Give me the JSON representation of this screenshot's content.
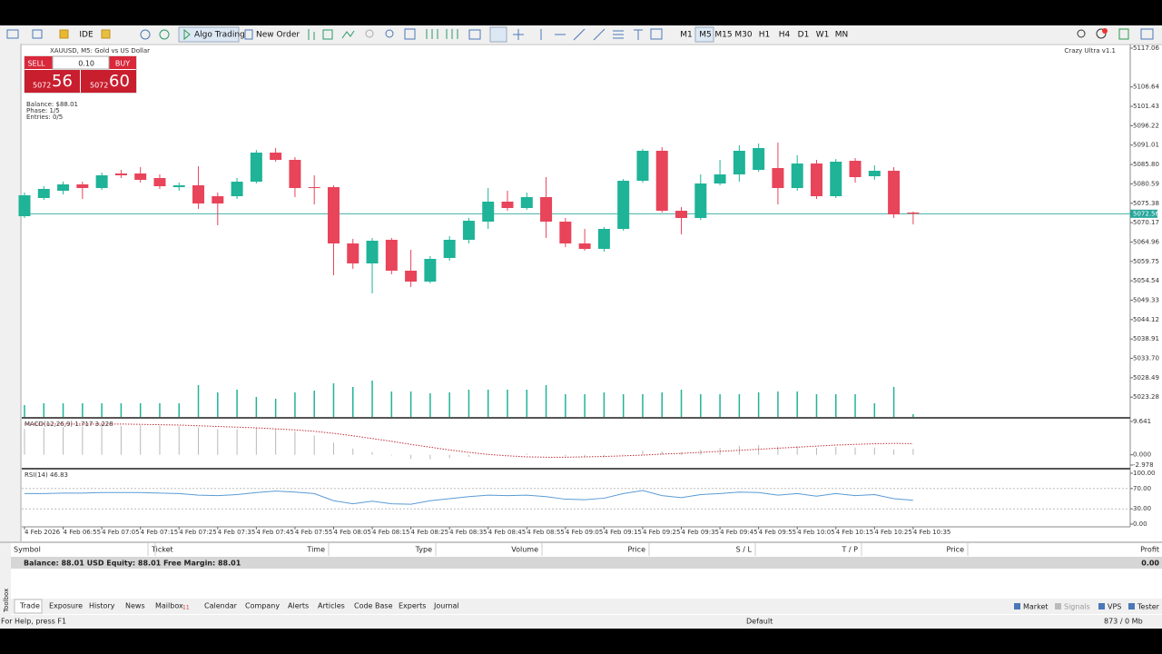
{
  "toolbar": {
    "ide": "IDE",
    "algo": "Algo Trading",
    "new_order": "New Order",
    "timeframes": [
      "M1",
      "M5",
      "M15",
      "M30",
      "H1",
      "H4",
      "D1",
      "W1",
      "MN"
    ]
  },
  "trade_panel": {
    "sell": "SELL",
    "buy": "BUY",
    "lot": "0.10",
    "bid_main": "5072",
    "bid_big": "56",
    "ask_main": "5072",
    "ask_big": "60"
  },
  "info": {
    "lines": [
      "Balance: $88.01",
      "Phase: 1/5",
      "Entries: 0/5"
    ]
  },
  "chart_data": {
    "type": "candlestick",
    "title": "XAUUSD, M5:  Gold vs US Dollar",
    "indicator": "Crazy Ultra v1.1",
    "bull_color": "#1fb398",
    "bear_color": "#e8445a",
    "categories": [
      "4 Feb 2026",
      null,
      "4 Feb 06:55",
      null,
      "4 Feb 07:05",
      null,
      "4 Feb 07:15",
      null,
      "4 Feb 07:25",
      null,
      "4 Feb 07:35",
      null,
      "4 Feb 07:45",
      null,
      "4 Feb 07:55",
      null,
      "4 Feb 08:05",
      null,
      "4 Feb 08:15",
      null,
      "4 Feb 08:25",
      null,
      "4 Feb 08:35",
      null,
      "4 Feb 08:45",
      null,
      "4 Feb 08:55",
      null,
      "4 Feb 09:05",
      null,
      "4 Feb 09:15",
      null,
      "4 Feb 09:25",
      null,
      "4 Feb 09:35",
      null,
      "4 Feb 09:45",
      null,
      "4 Feb 09:55",
      null,
      "4 Feb 10:05",
      null,
      "4 Feb 10:15",
      null,
      "4 Feb 10:25",
      null,
      "4 Feb 10:35"
    ],
    "open": [
      5071.9,
      5076.79,
      5078.74,
      5080.45,
      5079.47,
      5083.38,
      5083.38,
      5082.16,
      5079.71,
      5080.2,
      5077.27,
      5077.27,
      5081.18,
      5088.99,
      5087.04,
      5079.71,
      5079.71,
      5064.58,
      5059.21,
      5065.56,
      5057.26,
      5054.33,
      5060.68,
      5065.56,
      5070.44,
      5075.81,
      5074.1,
      5077.03,
      5070.44,
      5064.58,
      5063.12,
      5068.49,
      5081.42,
      5089.48,
      5073.37,
      5071.42,
      5080.69,
      5083.13,
      5084.35,
      5084.84,
      5079.47,
      5086.06,
      5077.27,
      5086.79,
      5082.64,
      5084.11,
      5072.88
    ],
    "high": [
      5078.25,
      5079.96,
      5081.18,
      5081.18,
      5083.62,
      5084.35,
      5085.08,
      5083.13,
      5080.94,
      5085.33,
      5078.25,
      5082.16,
      5089.72,
      5090.21,
      5087.77,
      5082.89,
      5080.2,
      5065.8,
      5066.04,
      5066.04,
      5062.87,
      5061.16,
      5066.53,
      5071.42,
      5079.47,
      5078.74,
      5078.25,
      5082.4,
      5071.42,
      5068.49,
      5068.97,
      5081.91,
      5089.97,
      5090.45,
      5074.35,
      5083.13,
      5087.04,
      5090.94,
      5091.43,
      5091.68,
      5088.25,
      5087.04,
      5087.28,
      5087.53,
      5085.57,
      5085.08,
      5073.13
    ],
    "low": [
      5071.42,
      5076.3,
      5077.76,
      5076.54,
      5078.98,
      5082.16,
      5080.94,
      5079.23,
      5078.74,
      5073.86,
      5069.46,
      5076.54,
      5080.69,
      5086.55,
      5077.03,
      5075.08,
      5056.04,
      5057.75,
      5051.16,
      5056.28,
      5052.87,
      5053.84,
      5059.94,
      5064.58,
      5068.49,
      5073.37,
      5073.61,
      5066.04,
      5063.6,
      5062.63,
      5062.39,
      5068.0,
      5080.94,
      5072.88,
      5067.02,
      5070.93,
      5080.2,
      5081.18,
      5083.86,
      5075.08,
      5078.74,
      5076.54,
      5076.79,
      5080.94,
      5081.67,
      5071.42,
      5069.7
    ],
    "close": [
      5077.52,
      5079.23,
      5080.45,
      5079.47,
      5082.89,
      5082.89,
      5081.67,
      5079.96,
      5080.2,
      5075.32,
      5075.32,
      5081.18,
      5088.99,
      5087.04,
      5079.47,
      5079.47,
      5064.58,
      5059.21,
      5065.31,
      5057.26,
      5054.33,
      5060.43,
      5065.56,
      5070.68,
      5075.81,
      5074.1,
      5077.03,
      5070.44,
      5064.58,
      5063.12,
      5068.49,
      5081.42,
      5089.48,
      5073.37,
      5071.42,
      5080.69,
      5083.13,
      5089.48,
      5090.21,
      5079.47,
      5086.06,
      5077.27,
      5086.55,
      5082.4,
      5084.11,
      5072.39,
      5072.56
    ],
    "ylim": [
      5017.96,
      5118.04
    ],
    "yticks": [
      {
        "value": 5117.06,
        "label": "5117.06"
      },
      {
        "value": 5106.64,
        "label": "5106.64"
      },
      {
        "value": 5101.43,
        "label": "5101.43"
      },
      {
        "value": 5096.22,
        "label": "5096.22"
      },
      {
        "value": 5091.01,
        "label": "5091.01"
      },
      {
        "value": 5085.8,
        "label": "5085.80"
      },
      {
        "value": 5080.59,
        "label": "5080.59"
      },
      {
        "value": 5075.38,
        "label": "5075.38"
      },
      {
        "value": 5070.17,
        "label": "5070.17"
      },
      {
        "value": 5064.96,
        "label": "5064.96"
      },
      {
        "value": 5059.75,
        "label": "5059.75"
      },
      {
        "value": 5054.54,
        "label": "5054.54"
      },
      {
        "value": 5049.33,
        "label": "5049.33"
      },
      {
        "value": 5044.12,
        "label": "5044.12"
      },
      {
        "value": 5038.91,
        "label": "5038.91"
      },
      {
        "value": 5033.7,
        "label": "5033.70"
      },
      {
        "value": 5028.49,
        "label": "5028.49"
      },
      {
        "value": 5023.28,
        "label": "5023.28"
      }
    ],
    "current_price": 5072.56,
    "current_color": "#26a69a",
    "volume": {
      "color": "#1fb398",
      "ylim": [
        0,
        4100
      ],
      "values": [
        130,
        150,
        150,
        150,
        150,
        150,
        150,
        150,
        150,
        350,
        270,
        300,
        220,
        200,
        270,
        290,
        370,
        330,
        400,
        280,
        280,
        260,
        270,
        300,
        300,
        300,
        300,
        350,
        250,
        250,
        270,
        250,
        250,
        270,
        300,
        250,
        250,
        250,
        270,
        280,
        280,
        250,
        250,
        250,
        150,
        330,
        30
      ]
    },
    "macd": {
      "label": "MACD(12,26,9) 1.717 3.228",
      "hist_color": "#b8b8b8",
      "signal_color": "#c0303a",
      "ylim": [
        -3.77,
        10.17
      ],
      "yticks": [
        {
          "value": 9.641,
          "label": "9.641"
        },
        {
          "value": 0,
          "label": "0.000"
        },
        {
          "value": -2.978,
          "label": "-2.978"
        }
      ],
      "histogram": [
        7.5,
        7.8,
        8,
        8.1,
        8.3,
        8.4,
        8.5,
        8.4,
        8.3,
        7.9,
        7.4,
        7.4,
        7.8,
        7.6,
        6.8,
        5.6,
        3.5,
        1.8,
        0.8,
        -0.2,
        -1.2,
        -1.3,
        -1.0,
        -0.6,
        -0.1,
        0.1,
        0.3,
        -0.1,
        -0.5,
        -0.8,
        -0.7,
        0.2,
        1.2,
        1.0,
        0.8,
        1.5,
        2.0,
        2.6,
        2.8,
        2.4,
        2.5,
        2.0,
        2.3,
        2.1,
        2.1,
        1.5,
        1.717
      ],
      "signal": [
        8.9,
        8.9,
        8.9,
        8.9,
        8.9,
        8.9,
        8.8,
        8.7,
        8.6,
        8.4,
        8.2,
        8.0,
        7.8,
        7.5,
        7.2,
        6.8,
        6.2,
        5.5,
        4.7,
        3.9,
        3.0,
        2.2,
        1.4,
        0.7,
        0.1,
        -0.3,
        -0.6,
        -0.7,
        -0.7,
        -0.6,
        -0.5,
        -0.3,
        -0.1,
        0.2,
        0.4,
        0.7,
        1.0,
        1.3,
        1.6,
        1.9,
        2.2,
        2.5,
        2.8,
        3.0,
        3.2,
        3.3,
        3.228
      ]
    },
    "rsi": {
      "label": "RSI(14) 46.83",
      "color": "#5b9bd5",
      "ylim": [
        -5.36,
        105.36
      ],
      "yticks": [
        {
          "value": 100,
          "label": "100.00"
        },
        {
          "value": 70,
          "label": "70.00"
        },
        {
          "value": 30,
          "label": "30.00"
        },
        {
          "value": 0,
          "label": "0.00"
        }
      ],
      "values": [
        60,
        60,
        61,
        61,
        62,
        62,
        62,
        61,
        60,
        57,
        56,
        58,
        62,
        65,
        63,
        60,
        46,
        40,
        45,
        40,
        39,
        46,
        50,
        54,
        57,
        56,
        57,
        54,
        49,
        48,
        51,
        60,
        66,
        56,
        52,
        58,
        60,
        63,
        62,
        57,
        60,
        55,
        60,
        56,
        58,
        50,
        46.83
      ]
    }
  },
  "terminal": {
    "columns": [
      "Symbol",
      "Ticket",
      "Time",
      "Type",
      "Volume",
      "Price",
      "S / L",
      "T / P",
      "Price",
      "Profit"
    ],
    "balance_row": "Balance: 88.01 USD  Equity: 88.01  Free Margin: 88.01",
    "profit": "0.00",
    "tabs": [
      "Trade",
      "Exposure",
      "History",
      "News",
      "Mailbox",
      "Calendar",
      "Company",
      "Alerts",
      "Articles",
      "Code Base",
      "Experts",
      "Journal"
    ],
    "mailbox_count": "11",
    "right_tabs": [
      "Market",
      "Signals",
      "VPS",
      "Tester"
    ],
    "toolbox": "Toolbox"
  },
  "status": {
    "help": "For Help, press F1",
    "profile": "Default",
    "memory": "873 / 0 Mb"
  }
}
